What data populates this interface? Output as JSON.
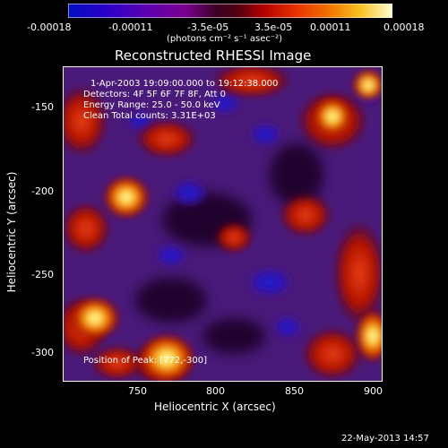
{
  "colorbar": {
    "ticks": [
      "-0.00018",
      "-0.00011",
      "-3.5e-05",
      "3.5e-05",
      "0.00011",
      "0.00018"
    ],
    "units_label": "(photons cm⁻² s⁻¹ asec⁻²)",
    "colors": [
      "#0000c8",
      "#1a00d0",
      "#5a00c0",
      "#8a00a0",
      "#a00060",
      "#b00010",
      "#d01000",
      "#e84000",
      "#f08000",
      "#f8c000",
      "#ffff80",
      "#ffffff"
    ]
  },
  "plot": {
    "title": "Reconstructed RHESSI Image",
    "info_lines": [
      "1-Apr-2003 19:09:00.000 to 19:12:38.000",
      "Detectors: 4F 5F 6F 7F 8F, Att 0",
      "Energy Range: 25.0 - 50.0 keV",
      "Clean    Total counts: 3.31E+03"
    ],
    "position_note": "Position of Peak: [772,-300]",
    "xlabel": "Heliocentric X (arcsec)",
    "ylabel": "Heliocentric Y (arcsec)",
    "xticks": [
      "750",
      "800",
      "850",
      "900"
    ],
    "yticks": [
      "-150",
      "-200",
      "-250",
      "-300"
    ],
    "palette": {
      "background_purple": "#4a1a78",
      "deep_blue": "#2020c0",
      "dark_red": "#a01010",
      "orange": "#e05010",
      "yellow": "#ffe060",
      "white_core": "#ffffe0",
      "contour_black": "#000000"
    }
  },
  "footer": {
    "date": "22-May-2013 14:57"
  }
}
